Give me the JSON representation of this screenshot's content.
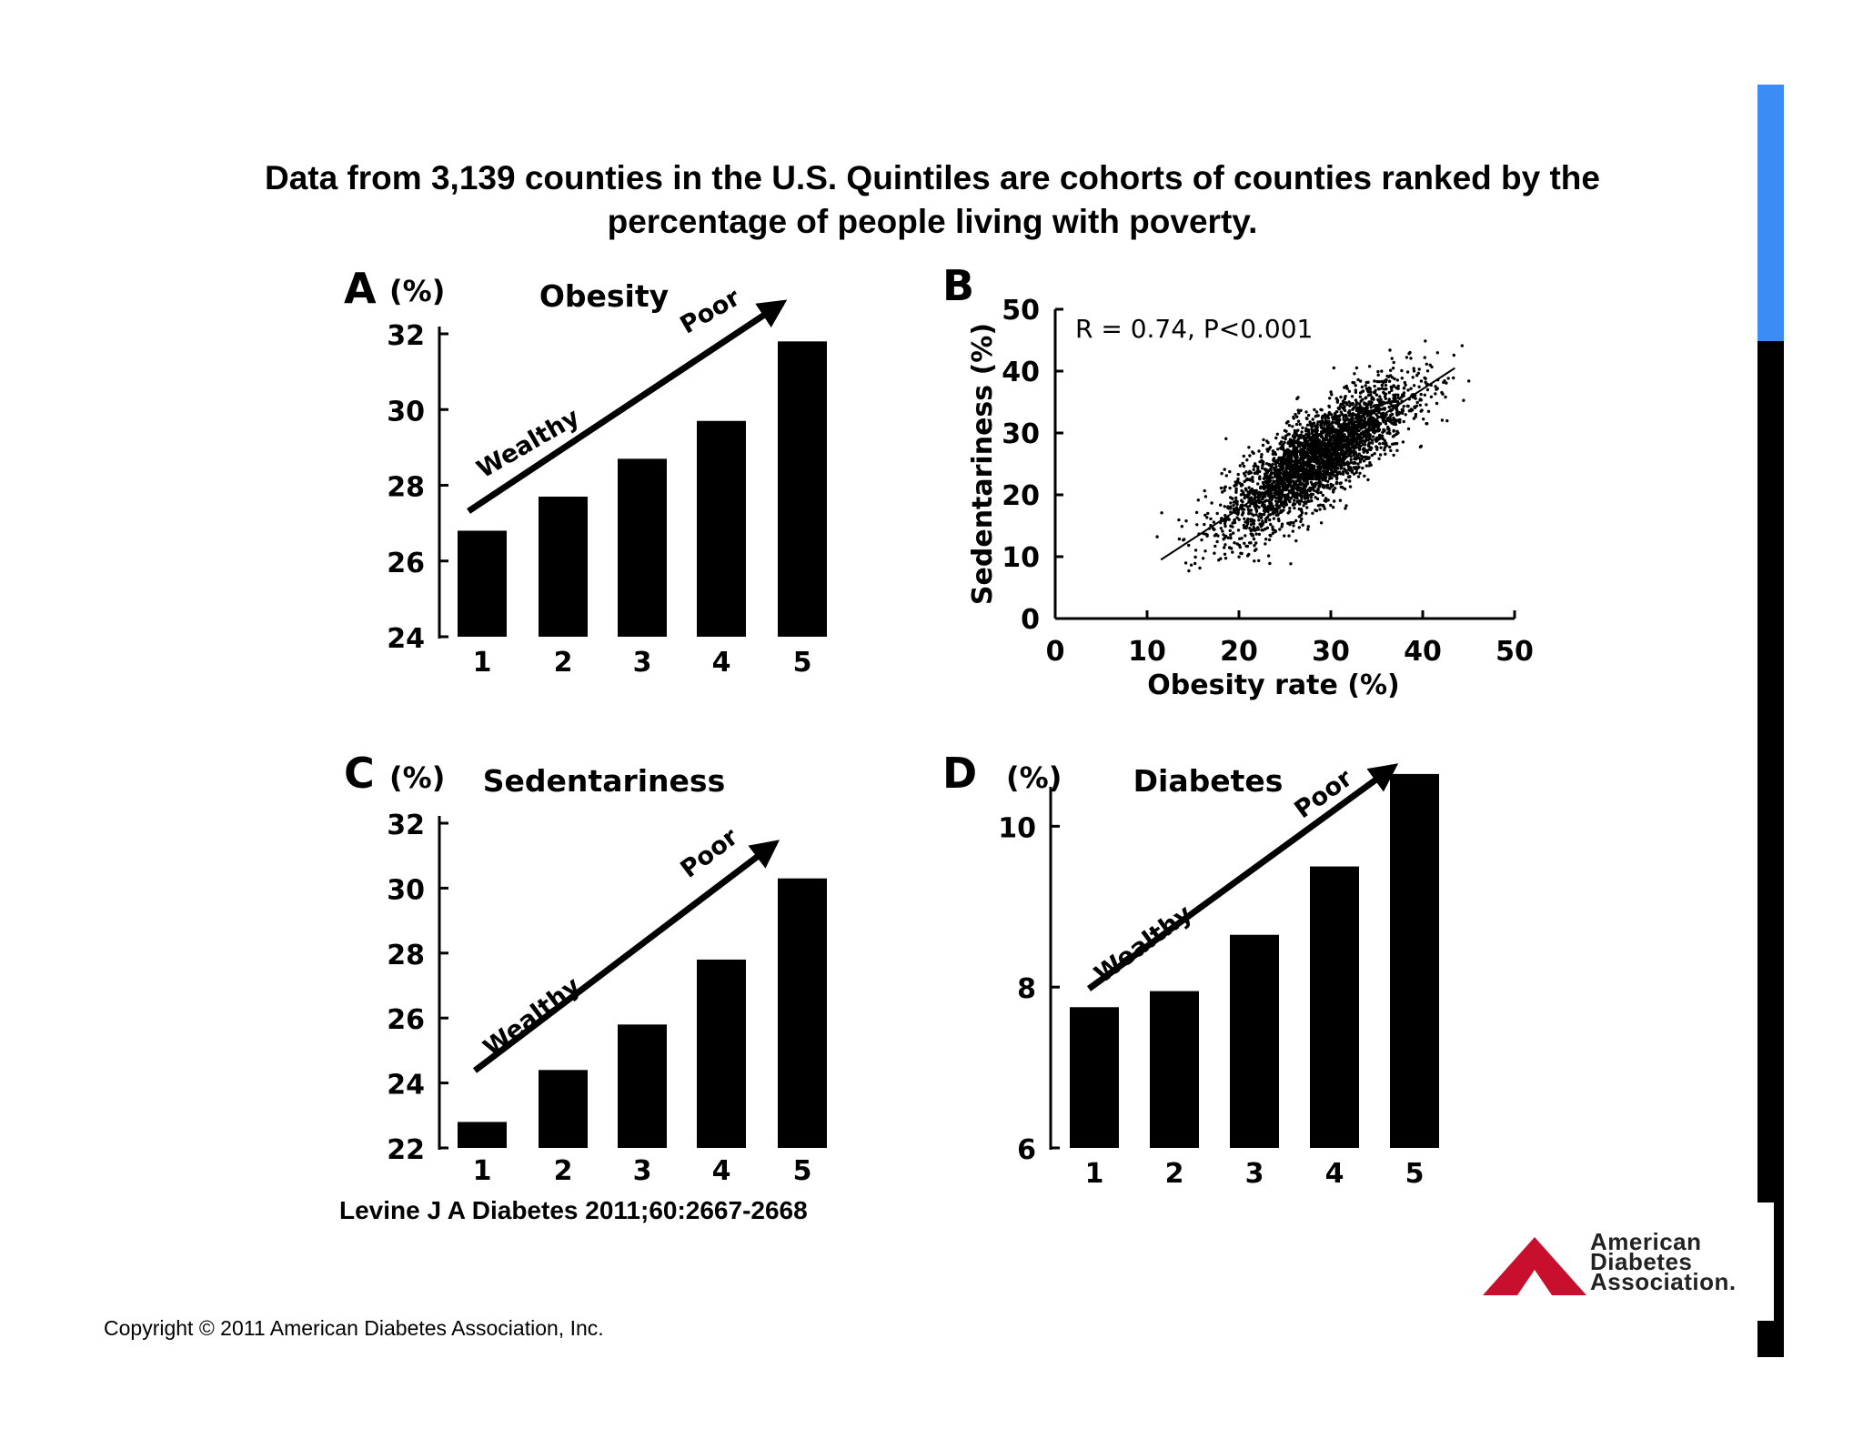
{
  "title": {
    "line1": "Data from 3,139 counties in the U.S. Quintiles are cohorts of counties ranked by the",
    "line2": "percentage of people living with poverty."
  },
  "citation": "Levine J A Diabetes 2011;60:2667-2668",
  "copyright": "Copyright © 2011 American Diabetes Association, Inc.",
  "logo": {
    "line1": "American",
    "line2": "Diabetes",
    "line3": "Association."
  },
  "colors": {
    "bar": "#000000",
    "accent_blue": "#3b8cf5",
    "side_bar": "#000000",
    "logo_red": "#c8102e"
  },
  "chart_data": [
    {
      "panel": "A",
      "type": "bar",
      "title": "Obesity",
      "unit_label": "(%)",
      "categories": [
        "1",
        "2",
        "3",
        "4",
        "5"
      ],
      "values": [
        26.8,
        27.7,
        28.7,
        29.7,
        31.8
      ],
      "ylim": [
        24,
        32
      ],
      "yticks": [
        "24",
        "26",
        "28",
        "30",
        "32"
      ],
      "arrow_labels": {
        "start": "Wealthy",
        "end": "Poor"
      }
    },
    {
      "panel": "B",
      "type": "scatter",
      "annotation": "R = 0.74, P<0.001",
      "xlabel": "Obesity rate (%)",
      "ylabel": "Sedentariness (%)",
      "xlim": [
        0,
        50
      ],
      "ylim": [
        0,
        50
      ],
      "xticks": [
        "0",
        "10",
        "20",
        "30",
        "40",
        "50"
      ],
      "yticks": [
        "0",
        "10",
        "20",
        "30",
        "40",
        "50"
      ],
      "fit_line": {
        "x": [
          11.5,
          43.5
        ],
        "y": [
          9.5,
          40.5
        ]
      },
      "cloud": {
        "n": 3139,
        "x_mean": 28.5,
        "x_sd": 5.0,
        "r": 0.74,
        "y_sd": 5.3
      }
    },
    {
      "panel": "C",
      "type": "bar",
      "title": "Sedentariness",
      "unit_label": "(%)",
      "categories": [
        "1",
        "2",
        "3",
        "4",
        "5"
      ],
      "values": [
        22.8,
        24.4,
        25.8,
        27.8,
        30.3
      ],
      "ylim": [
        22,
        32
      ],
      "yticks": [
        "22",
        "24",
        "26",
        "28",
        "30",
        "32"
      ],
      "arrow_labels": {
        "start": "Wealthy",
        "end": "Poor"
      }
    },
    {
      "panel": "D",
      "type": "bar",
      "title": "Diabetes",
      "unit_label": "(%)",
      "categories": [
        "1",
        "2",
        "3",
        "4",
        "5"
      ],
      "values": [
        7.75,
        7.95,
        8.65,
        9.5,
        10.65
      ],
      "ylim": [
        6,
        10.4
      ],
      "yticks": [
        "6",
        "8",
        "10"
      ],
      "ytick_values": [
        6,
        8,
        10
      ],
      "arrow_labels": {
        "start": "Wealthy",
        "end": "Poor"
      }
    }
  ]
}
